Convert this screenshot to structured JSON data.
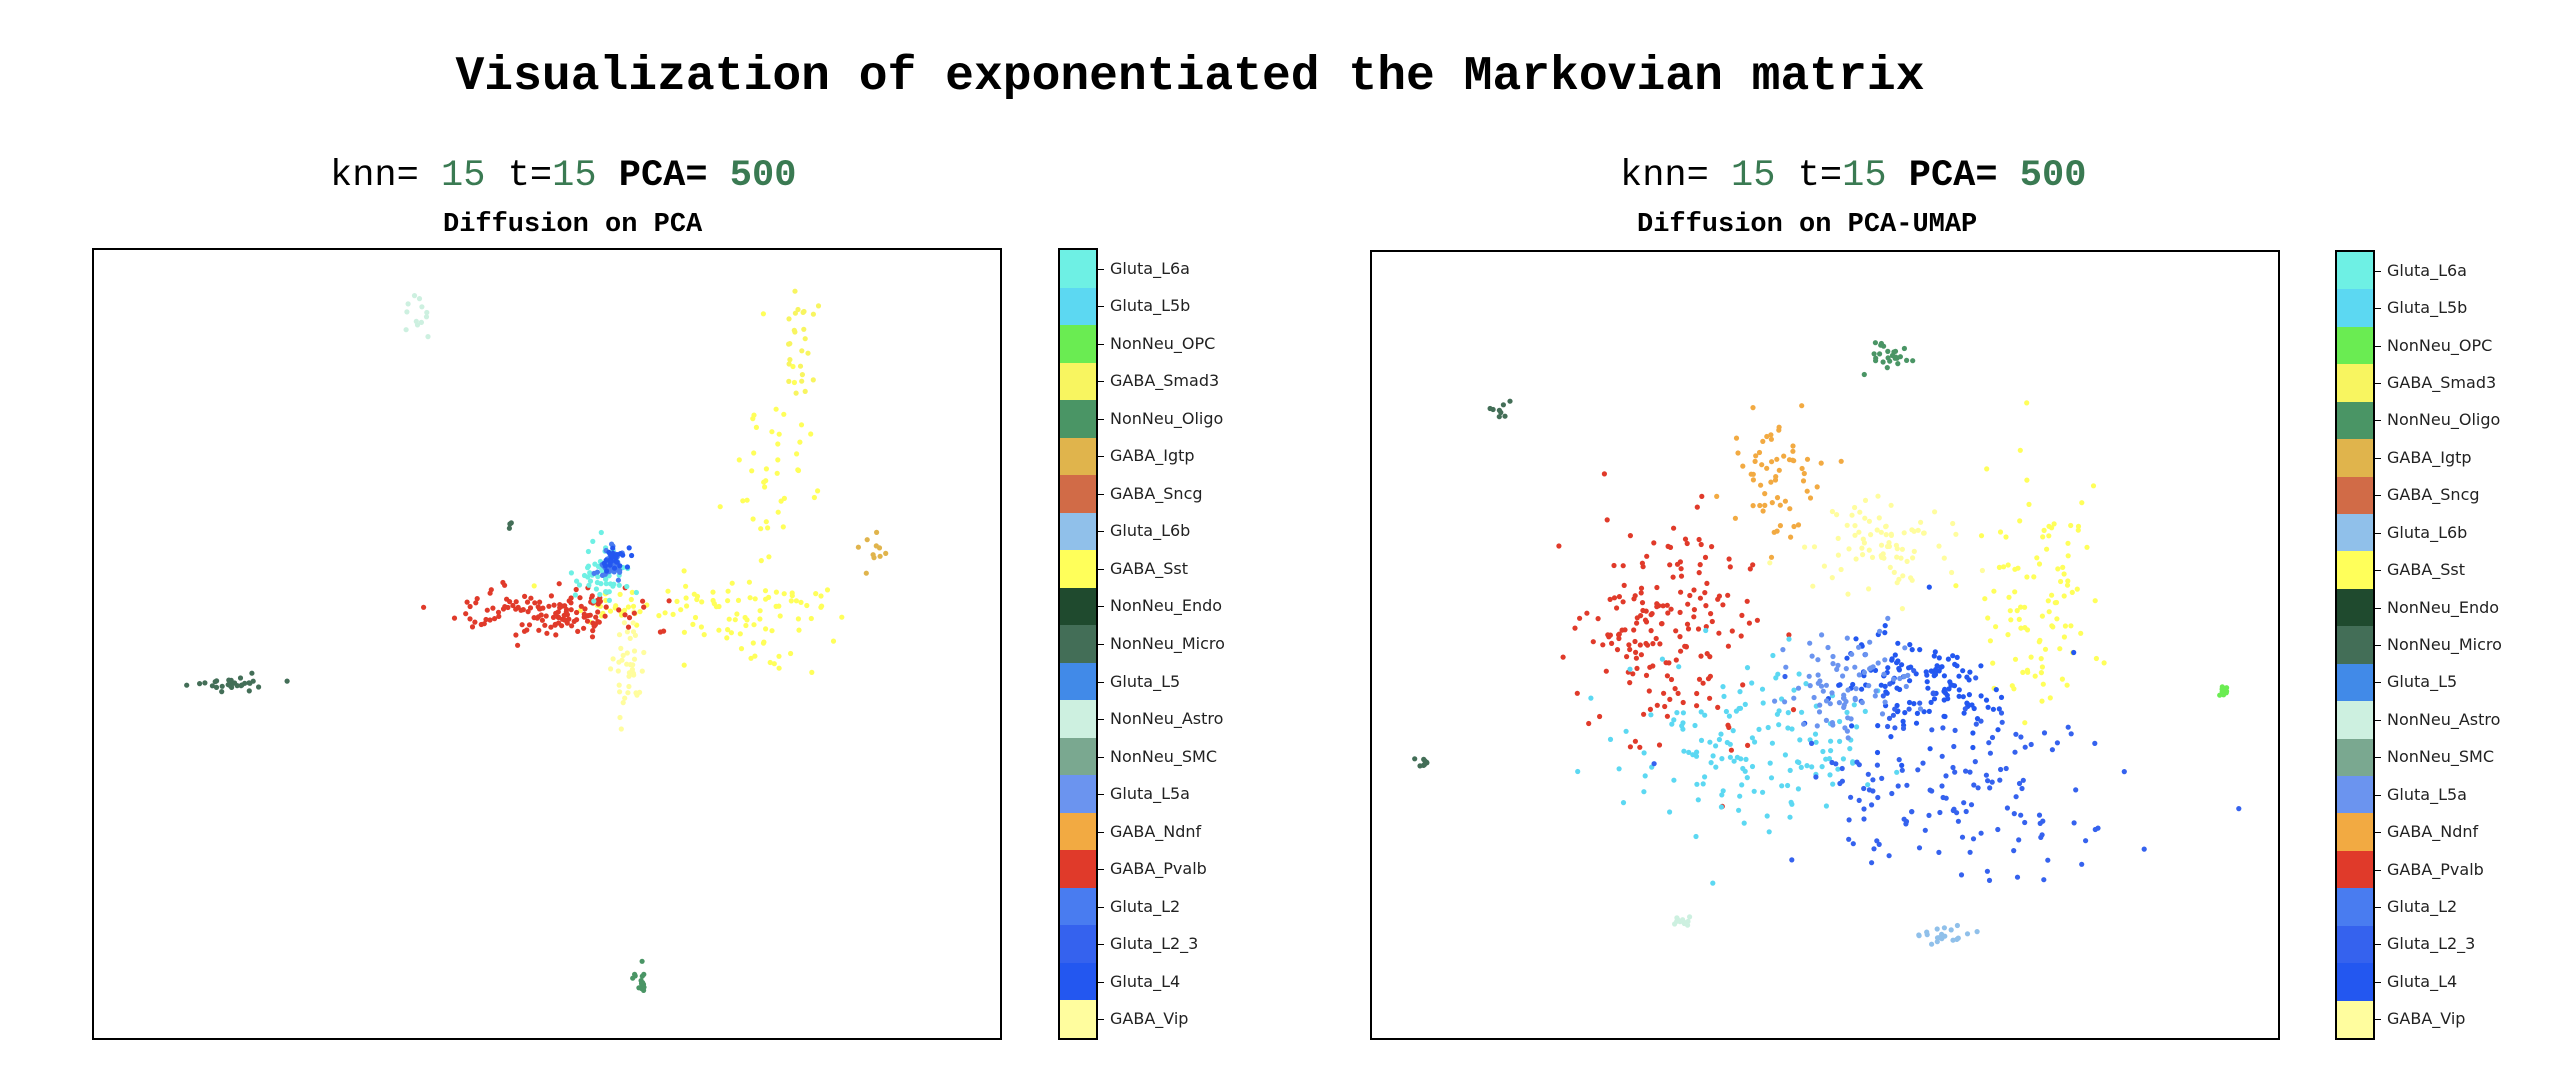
{
  "figure": {
    "title": "Visualization of exponentiated the Markovian matrix"
  },
  "chart_data": [
    {
      "type": "scatter",
      "params": {
        "knn_label": "knn=",
        "knn": "15",
        "t_label": "t=",
        "t": "15",
        "pca_label": "PCA=",
        "pca": "500"
      },
      "title": "Diffusion on PCA",
      "xlabel": "",
      "ylabel": "",
      "colorbar": {
        "labels": [
          "Gluta_L6a",
          "Gluta_L5b",
          "NonNeu_OPC",
          "GABA_Smad3",
          "NonNeu_Oligo",
          "GABA_Igtp",
          "GABA_Sncg",
          "Gluta_L6b",
          "GABA_Sst",
          "NonNeu_Endo",
          "NonNeu_Micro",
          "Gluta_L5",
          "NonNeu_Astro",
          "NonNeu_SMC",
          "Gluta_L5a",
          "GABA_Ndnf",
          "GABA_Pvalb",
          "Gluta_L2",
          "Gluta_L2_3",
          "Gluta_L4",
          "GABA_Vip"
        ],
        "colors": [
          "#6ef0e4",
          "#5cd8f2",
          "#6aec52",
          "#f8f560",
          "#4a9565",
          "#e0b44c",
          "#d16b47",
          "#90c0ea",
          "#ffff5a",
          "#1f4a2e",
          "#436e57",
          "#418ae8",
          "#cdf0e0",
          "#7aa890",
          "#6b94ef",
          "#f2aa42",
          "#e03a2a",
          "#497cf0",
          "#3562ee",
          "#2357f0",
          "#fffd9e"
        ]
      },
      "clusters": [
        {
          "category": "NonNeu_Astro",
          "cx": 0.36,
          "cy": 0.08,
          "dx": 0.015,
          "dy": 0.025,
          "n": 12
        },
        {
          "category": "GABA_Smad3",
          "cx": 0.78,
          "cy": 0.12,
          "dx": 0.02,
          "dy": 0.05,
          "n": 25
        },
        {
          "category": "GABA_Sst",
          "cx": 0.75,
          "cy": 0.25,
          "dx": 0.04,
          "dy": 0.12,
          "n": 40
        },
        {
          "category": "GABA_Igtp",
          "cx": 0.86,
          "cy": 0.38,
          "dx": 0.015,
          "dy": 0.02,
          "n": 10
        },
        {
          "category": "GABA_Sst",
          "cx": 0.73,
          "cy": 0.47,
          "dx": 0.07,
          "dy": 0.05,
          "n": 70
        },
        {
          "category": "GABA_Sst",
          "cx": 0.6,
          "cy": 0.45,
          "dx": 0.08,
          "dy": 0.02,
          "n": 40
        },
        {
          "category": "GABA_Vip",
          "cx": 0.59,
          "cy": 0.52,
          "dx": 0.015,
          "dy": 0.07,
          "n": 40
        },
        {
          "category": "GABA_Pvalb",
          "cx": 0.5,
          "cy": 0.46,
          "dx": 0.08,
          "dy": 0.025,
          "n": 140
        },
        {
          "category": "Gluta_L6a",
          "cx": 0.56,
          "cy": 0.41,
          "dx": 0.025,
          "dy": 0.03,
          "n": 60
        },
        {
          "category": "Gluta_L2",
          "cx": 0.57,
          "cy": 0.4,
          "dx": 0.015,
          "dy": 0.02,
          "n": 40
        },
        {
          "category": "Gluta_L4",
          "cx": 0.575,
          "cy": 0.39,
          "dx": 0.012,
          "dy": 0.015,
          "n": 25
        },
        {
          "category": "NonNeu_Micro",
          "cx": 0.15,
          "cy": 0.55,
          "dx": 0.04,
          "dy": 0.008,
          "n": 30
        },
        {
          "category": "NonNeu_Oligo",
          "cx": 0.605,
          "cy": 0.93,
          "dx": 0.006,
          "dy": 0.02,
          "n": 15
        },
        {
          "category": "NonNeu_Micro",
          "cx": 0.46,
          "cy": 0.35,
          "dx": 0.005,
          "dy": 0.005,
          "n": 3
        }
      ]
    },
    {
      "type": "scatter",
      "params": {
        "knn_label": "knn=",
        "knn": "15",
        "t_label": "t=",
        "t": "15",
        "pca_label": "PCA=",
        "pca": "500"
      },
      "title": "Diffusion on PCA-UMAP",
      "xlabel": "",
      "ylabel": "",
      "colorbar": {
        "labels": [
          "Gluta_L6a",
          "Gluta_L5b",
          "NonNeu_OPC",
          "GABA_Smad3",
          "NonNeu_Oligo",
          "GABA_Igtp",
          "GABA_Sncg",
          "Gluta_L6b",
          "GABA_Sst",
          "NonNeu_Endo",
          "NonNeu_Micro",
          "Gluta_L5",
          "NonNeu_Astro",
          "NonNeu_SMC",
          "Gluta_L5a",
          "GABA_Ndnf",
          "GABA_Pvalb",
          "Gluta_L2",
          "Gluta_L2_3",
          "Gluta_L4",
          "GABA_Vip"
        ],
        "colors": [
          "#6ef0e4",
          "#5cd8f2",
          "#6aec52",
          "#f8f560",
          "#4a9565",
          "#e0b44c",
          "#d16b47",
          "#90c0ea",
          "#ffff5a",
          "#1f4a2e",
          "#436e57",
          "#418ae8",
          "#cdf0e0",
          "#7aa890",
          "#6b94ef",
          "#f2aa42",
          "#e03a2a",
          "#497cf0",
          "#3562ee",
          "#2357f0",
          "#fffd9e"
        ]
      },
      "clusters": [
        {
          "category": "NonNeu_Oligo",
          "cx": 0.57,
          "cy": 0.13,
          "dx": 0.02,
          "dy": 0.015,
          "n": 25
        },
        {
          "category": "NonNeu_Micro",
          "cx": 0.14,
          "cy": 0.2,
          "dx": 0.008,
          "dy": 0.008,
          "n": 8
        },
        {
          "category": "GABA_Ndnf",
          "cx": 0.44,
          "cy": 0.28,
          "dx": 0.05,
          "dy": 0.07,
          "n": 60
        },
        {
          "category": "GABA_Vip",
          "cx": 0.57,
          "cy": 0.37,
          "dx": 0.06,
          "dy": 0.05,
          "n": 80
        },
        {
          "category": "GABA_Sst",
          "cx": 0.73,
          "cy": 0.45,
          "dx": 0.05,
          "dy": 0.12,
          "n": 100
        },
        {
          "category": "GABA_Pvalb",
          "cx": 0.33,
          "cy": 0.48,
          "dx": 0.08,
          "dy": 0.11,
          "n": 180
        },
        {
          "category": "NonNeu_OPC",
          "cx": 0.94,
          "cy": 0.56,
          "dx": 0.006,
          "dy": 0.006,
          "n": 10
        },
        {
          "category": "NonNeu_Micro",
          "cx": 0.055,
          "cy": 0.65,
          "dx": 0.006,
          "dy": 0.006,
          "n": 8
        },
        {
          "category": "Gluta_L5b",
          "cx": 0.42,
          "cy": 0.63,
          "dx": 0.12,
          "dy": 0.1,
          "n": 150
        },
        {
          "category": "Gluta_L4",
          "cx": 0.6,
          "cy": 0.55,
          "dx": 0.08,
          "dy": 0.06,
          "n": 140
        },
        {
          "category": "Gluta_L2_3",
          "cx": 0.65,
          "cy": 0.67,
          "dx": 0.14,
          "dy": 0.1,
          "n": 150
        },
        {
          "category": "Gluta_L5a",
          "cx": 0.52,
          "cy": 0.55,
          "dx": 0.06,
          "dy": 0.05,
          "n": 80
        },
        {
          "category": "NonNeu_Astro",
          "cx": 0.34,
          "cy": 0.85,
          "dx": 0.01,
          "dy": 0.01,
          "n": 12
        },
        {
          "category": "Gluta_L6b",
          "cx": 0.63,
          "cy": 0.87,
          "dx": 0.03,
          "dy": 0.01,
          "n": 20
        }
      ]
    }
  ]
}
